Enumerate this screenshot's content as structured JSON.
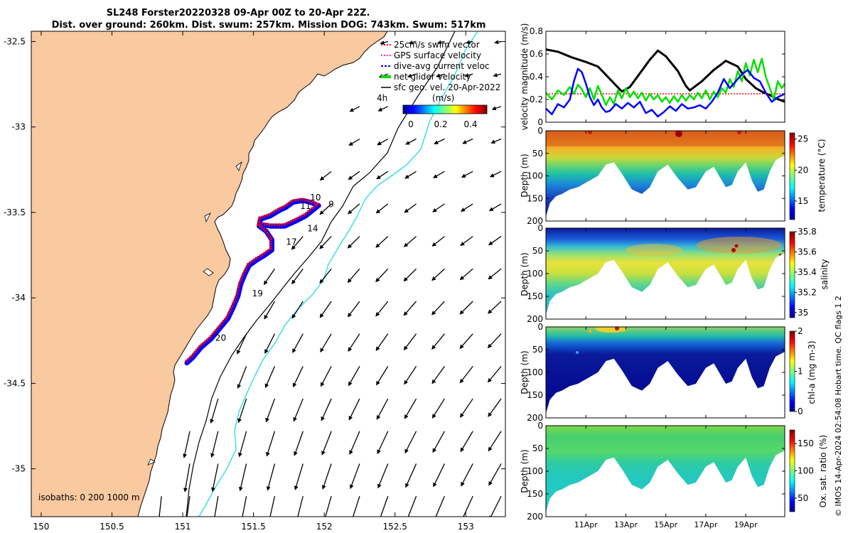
{
  "title_line1": "SL248 Forster20220328 09-Apr 00Z to 20-Apr 22Z.",
  "title_line2": "Dist. over ground: 260km. Dist. swum: 257km. Mission DOG: 743km. Swum: 517km",
  "side_note": "© IMOS 14-Apr-2024 02:54:08 Hobart time. QC flags 1  2",
  "colors": {
    "land": "#f9c9a0",
    "track_red": "#ff0000",
    "track_blue": "#0000ff",
    "green": "#00e000",
    "cyan": "#33dddd"
  },
  "chart_data": [
    {
      "type": "map",
      "lon_ticks": [
        "150",
        "150.5",
        "151",
        "151.5",
        "152",
        "152.5",
        "153"
      ],
      "lat_ticks": [
        "-32.5",
        "-33",
        "-33.5",
        "-34",
        "-34.5",
        "-35"
      ],
      "xlim": [
        149.93,
        153.28
      ],
      "ylim": [
        -35.28,
        -32.44
      ],
      "legend": {
        "placement": "top-right",
        "entries": [
          {
            "label": "25cm/s swim vector",
            "color": "#ff0000"
          },
          {
            "label": "GPS surface velocity",
            "color": "#ff00ff"
          },
          {
            "label": "dive-avg current veloc",
            "color": "#0000ff"
          },
          {
            "label": "net glider velocity",
            "color": "#00e000"
          },
          {
            "label": "sfc geo. vel. 20-Apr-2022",
            "color": "#000000"
          }
        ]
      },
      "colorbar": {
        "unit": "(m/s)",
        "ticks": [
          "0",
          "0.2",
          "0.4"
        ],
        "range": [
          0,
          0.5
        ],
        "prefix": "4h"
      },
      "isobaths_label": "isobaths: 0   200  1000 m",
      "day_labels": [
        {
          "label": "9",
          "lon": 152.03,
          "lat": -33.47
        },
        {
          "label": "10",
          "lon": 151.9,
          "lat": -33.43
        },
        {
          "label": "11",
          "lon": 151.83,
          "lat": -33.48
        },
        {
          "label": "14",
          "lon": 151.88,
          "lat": -33.61
        },
        {
          "label": "17",
          "lon": 151.73,
          "lat": -33.69
        },
        {
          "label": "19",
          "lon": 151.49,
          "lat": -33.99
        },
        {
          "label": "20",
          "lon": 151.23,
          "lat": -34.25
        }
      ],
      "track": [
        [
          151.03,
          -34.38
        ],
        [
          151.07,
          -34.35
        ],
        [
          151.13,
          -34.29
        ],
        [
          151.2,
          -34.24
        ],
        [
          151.27,
          -34.17
        ],
        [
          151.32,
          -34.12
        ],
        [
          151.36,
          -34.05
        ],
        [
          151.39,
          -33.99
        ],
        [
          151.41,
          -33.92
        ],
        [
          151.44,
          -33.86
        ],
        [
          151.47,
          -33.81
        ],
        [
          151.52,
          -33.78
        ],
        [
          151.58,
          -33.75
        ],
        [
          151.63,
          -33.72
        ],
        [
          151.63,
          -33.66
        ],
        [
          151.59,
          -33.61
        ],
        [
          151.54,
          -33.58
        ],
        [
          151.55,
          -33.54
        ],
        [
          151.62,
          -33.52
        ],
        [
          151.68,
          -33.49
        ],
        [
          151.73,
          -33.47
        ],
        [
          151.78,
          -33.44
        ],
        [
          151.85,
          -33.43
        ],
        [
          151.9,
          -33.44
        ],
        [
          151.96,
          -33.46
        ],
        [
          151.87,
          -33.52
        ],
        [
          151.8,
          -33.55
        ],
        [
          151.72,
          -33.58
        ],
        [
          151.62,
          -33.58
        ],
        [
          151.55,
          -33.57
        ]
      ]
    },
    {
      "type": "line",
      "ylabel": "velocity magnitude (m/s)",
      "ylim": [
        0,
        0.8
      ],
      "yticks": [
        "0",
        "0.2",
        "0.4",
        "0.6",
        "0.8"
      ],
      "x_ticks": [
        "11Apr",
        "13Apr",
        "15Apr",
        "17Apr",
        "19Apr"
      ],
      "xlim": [
        9.0,
        20.95
      ],
      "series": [
        {
          "color": "#000000",
          "points": [
            [
              9.0,
              0.64
            ],
            [
              9.6,
              0.62
            ],
            [
              10.3,
              0.57
            ],
            [
              11.0,
              0.53
            ],
            [
              11.6,
              0.49
            ],
            [
              12.2,
              0.38
            ],
            [
              12.8,
              0.27
            ],
            [
              13.2,
              0.31
            ],
            [
              13.7,
              0.43
            ],
            [
              14.2,
              0.55
            ],
            [
              14.6,
              0.63
            ],
            [
              15.0,
              0.58
            ],
            [
              15.6,
              0.45
            ],
            [
              16.0,
              0.32
            ],
            [
              16.2,
              0.28
            ],
            [
              16.8,
              0.36
            ],
            [
              17.4,
              0.46
            ],
            [
              18.0,
              0.54
            ],
            [
              18.6,
              0.49
            ],
            [
              19.0,
              0.38
            ],
            [
              19.5,
              0.3
            ],
            [
              19.9,
              0.26
            ],
            [
              20.2,
              0.24
            ],
            [
              20.5,
              0.21
            ],
            [
              20.95,
              0.18
            ]
          ]
        },
        {
          "color": "#ff0000",
          "points": [
            [
              9.0,
              0.25
            ],
            [
              20.95,
              0.25
            ]
          ]
        },
        {
          "color": "#00e000",
          "points": [
            [
              9.0,
              0.26
            ],
            [
              9.3,
              0.2
            ],
            [
              9.6,
              0.28
            ],
            [
              9.9,
              0.24
            ],
            [
              10.2,
              0.31
            ],
            [
              10.4,
              0.25
            ],
            [
              10.6,
              0.33
            ],
            [
              10.8,
              0.29
            ],
            [
              11.0,
              0.22
            ],
            [
              11.2,
              0.3
            ],
            [
              11.4,
              0.2
            ],
            [
              11.6,
              0.32
            ],
            [
              11.8,
              0.24
            ],
            [
              12.0,
              0.15
            ],
            [
              12.2,
              0.22
            ],
            [
              12.4,
              0.16
            ],
            [
              12.6,
              0.28
            ],
            [
              12.8,
              0.21
            ],
            [
              13.0,
              0.3
            ],
            [
              13.2,
              0.22
            ],
            [
              13.4,
              0.27
            ],
            [
              13.6,
              0.21
            ],
            [
              13.8,
              0.26
            ],
            [
              14.0,
              0.19
            ],
            [
              14.2,
              0.25
            ],
            [
              14.4,
              0.2
            ],
            [
              14.6,
              0.24
            ],
            [
              14.8,
              0.18
            ],
            [
              15.0,
              0.22
            ],
            [
              15.2,
              0.17
            ],
            [
              15.4,
              0.23
            ],
            [
              15.6,
              0.18
            ],
            [
              15.8,
              0.24
            ],
            [
              16.0,
              0.19
            ],
            [
              16.2,
              0.24
            ],
            [
              16.4,
              0.2
            ],
            [
              16.6,
              0.26
            ],
            [
              16.8,
              0.21
            ],
            [
              17.0,
              0.28
            ],
            [
              17.2,
              0.2
            ],
            [
              17.4,
              0.27
            ],
            [
              17.6,
              0.22
            ],
            [
              17.8,
              0.3
            ],
            [
              18.0,
              0.26
            ],
            [
              18.2,
              0.38
            ],
            [
              18.4,
              0.31
            ],
            [
              18.6,
              0.45
            ],
            [
              18.8,
              0.36
            ],
            [
              19.0,
              0.52
            ],
            [
              19.2,
              0.41
            ],
            [
              19.4,
              0.55
            ],
            [
              19.6,
              0.44
            ],
            [
              19.8,
              0.56
            ],
            [
              20.0,
              0.4
            ],
            [
              20.2,
              0.3
            ],
            [
              20.4,
              0.2
            ],
            [
              20.6,
              0.36
            ],
            [
              20.8,
              0.3
            ],
            [
              20.95,
              0.34
            ]
          ]
        },
        {
          "color": "#0000ff",
          "points": [
            [
              9.0,
              0.12
            ],
            [
              9.3,
              0.07
            ],
            [
              9.6,
              0.16
            ],
            [
              9.9,
              0.13
            ],
            [
              10.2,
              0.2
            ],
            [
              10.4,
              0.36
            ],
            [
              10.6,
              0.47
            ],
            [
              10.8,
              0.44
            ],
            [
              11.0,
              0.34
            ],
            [
              11.2,
              0.22
            ],
            [
              11.4,
              0.15
            ],
            [
              11.6,
              0.2
            ],
            [
              11.8,
              0.13
            ],
            [
              12.0,
              0.09
            ],
            [
              12.2,
              0.1
            ],
            [
              12.5,
              0.16
            ],
            [
              12.8,
              0.12
            ],
            [
              13.1,
              0.17
            ],
            [
              13.4,
              0.13
            ],
            [
              13.7,
              0.18
            ],
            [
              14.0,
              0.08
            ],
            [
              14.3,
              0.11
            ],
            [
              14.6,
              0.05
            ],
            [
              14.9,
              0.09
            ],
            [
              15.2,
              0.14
            ],
            [
              15.5,
              0.1
            ],
            [
              15.8,
              0.16
            ],
            [
              16.1,
              0.12
            ],
            [
              16.4,
              0.13
            ],
            [
              16.7,
              0.15
            ],
            [
              17.0,
              0.12
            ],
            [
              17.3,
              0.18
            ],
            [
              17.6,
              0.26
            ],
            [
              17.9,
              0.38
            ],
            [
              18.2,
              0.3
            ],
            [
              18.5,
              0.36
            ],
            [
              18.8,
              0.42
            ],
            [
              19.1,
              0.46
            ],
            [
              19.4,
              0.39
            ],
            [
              19.7,
              0.36
            ],
            [
              20.0,
              0.26
            ],
            [
              20.3,
              0.18
            ],
            [
              20.6,
              0.22
            ],
            [
              20.95,
              0.25
            ]
          ]
        }
      ]
    },
    {
      "type": "heatmap",
      "ylabel": "Depth (m)",
      "clabel": "temperature (°C)",
      "ylim": [
        200,
        0
      ],
      "yticks": [
        "0",
        "50",
        "100",
        "150",
        "200"
      ],
      "cticks": [
        "15",
        "20",
        "25"
      ],
      "crange": [
        12,
        26
      ]
    },
    {
      "type": "heatmap",
      "ylabel": "Depth (m)",
      "clabel": "salinity",
      "ylim": [
        200,
        0
      ],
      "yticks": [
        "0",
        "50",
        "100",
        "150",
        "200"
      ],
      "cticks": [
        "35",
        "35.2",
        "35.4",
        "35.6",
        "35.8"
      ],
      "crange": [
        34.95,
        35.8
      ]
    },
    {
      "type": "heatmap",
      "ylabel": "Depth (m)",
      "clabel": "chl-a (mg m-3)",
      "ylim": [
        200,
        0
      ],
      "yticks": [
        "0",
        "50",
        "100",
        "150",
        "200"
      ],
      "cticks": [
        "0",
        "1",
        "2"
      ],
      "crange": [
        0,
        2
      ]
    },
    {
      "type": "heatmap",
      "ylabel": "Depth (m)",
      "clabel": "Ox. sat. ratio (%)",
      "ylim": [
        200,
        0
      ],
      "yticks": [
        "0",
        "50",
        "100",
        "150",
        "200"
      ],
      "cticks": [
        "50",
        "100",
        "150"
      ],
      "crange": [
        25,
        175
      ]
    }
  ]
}
